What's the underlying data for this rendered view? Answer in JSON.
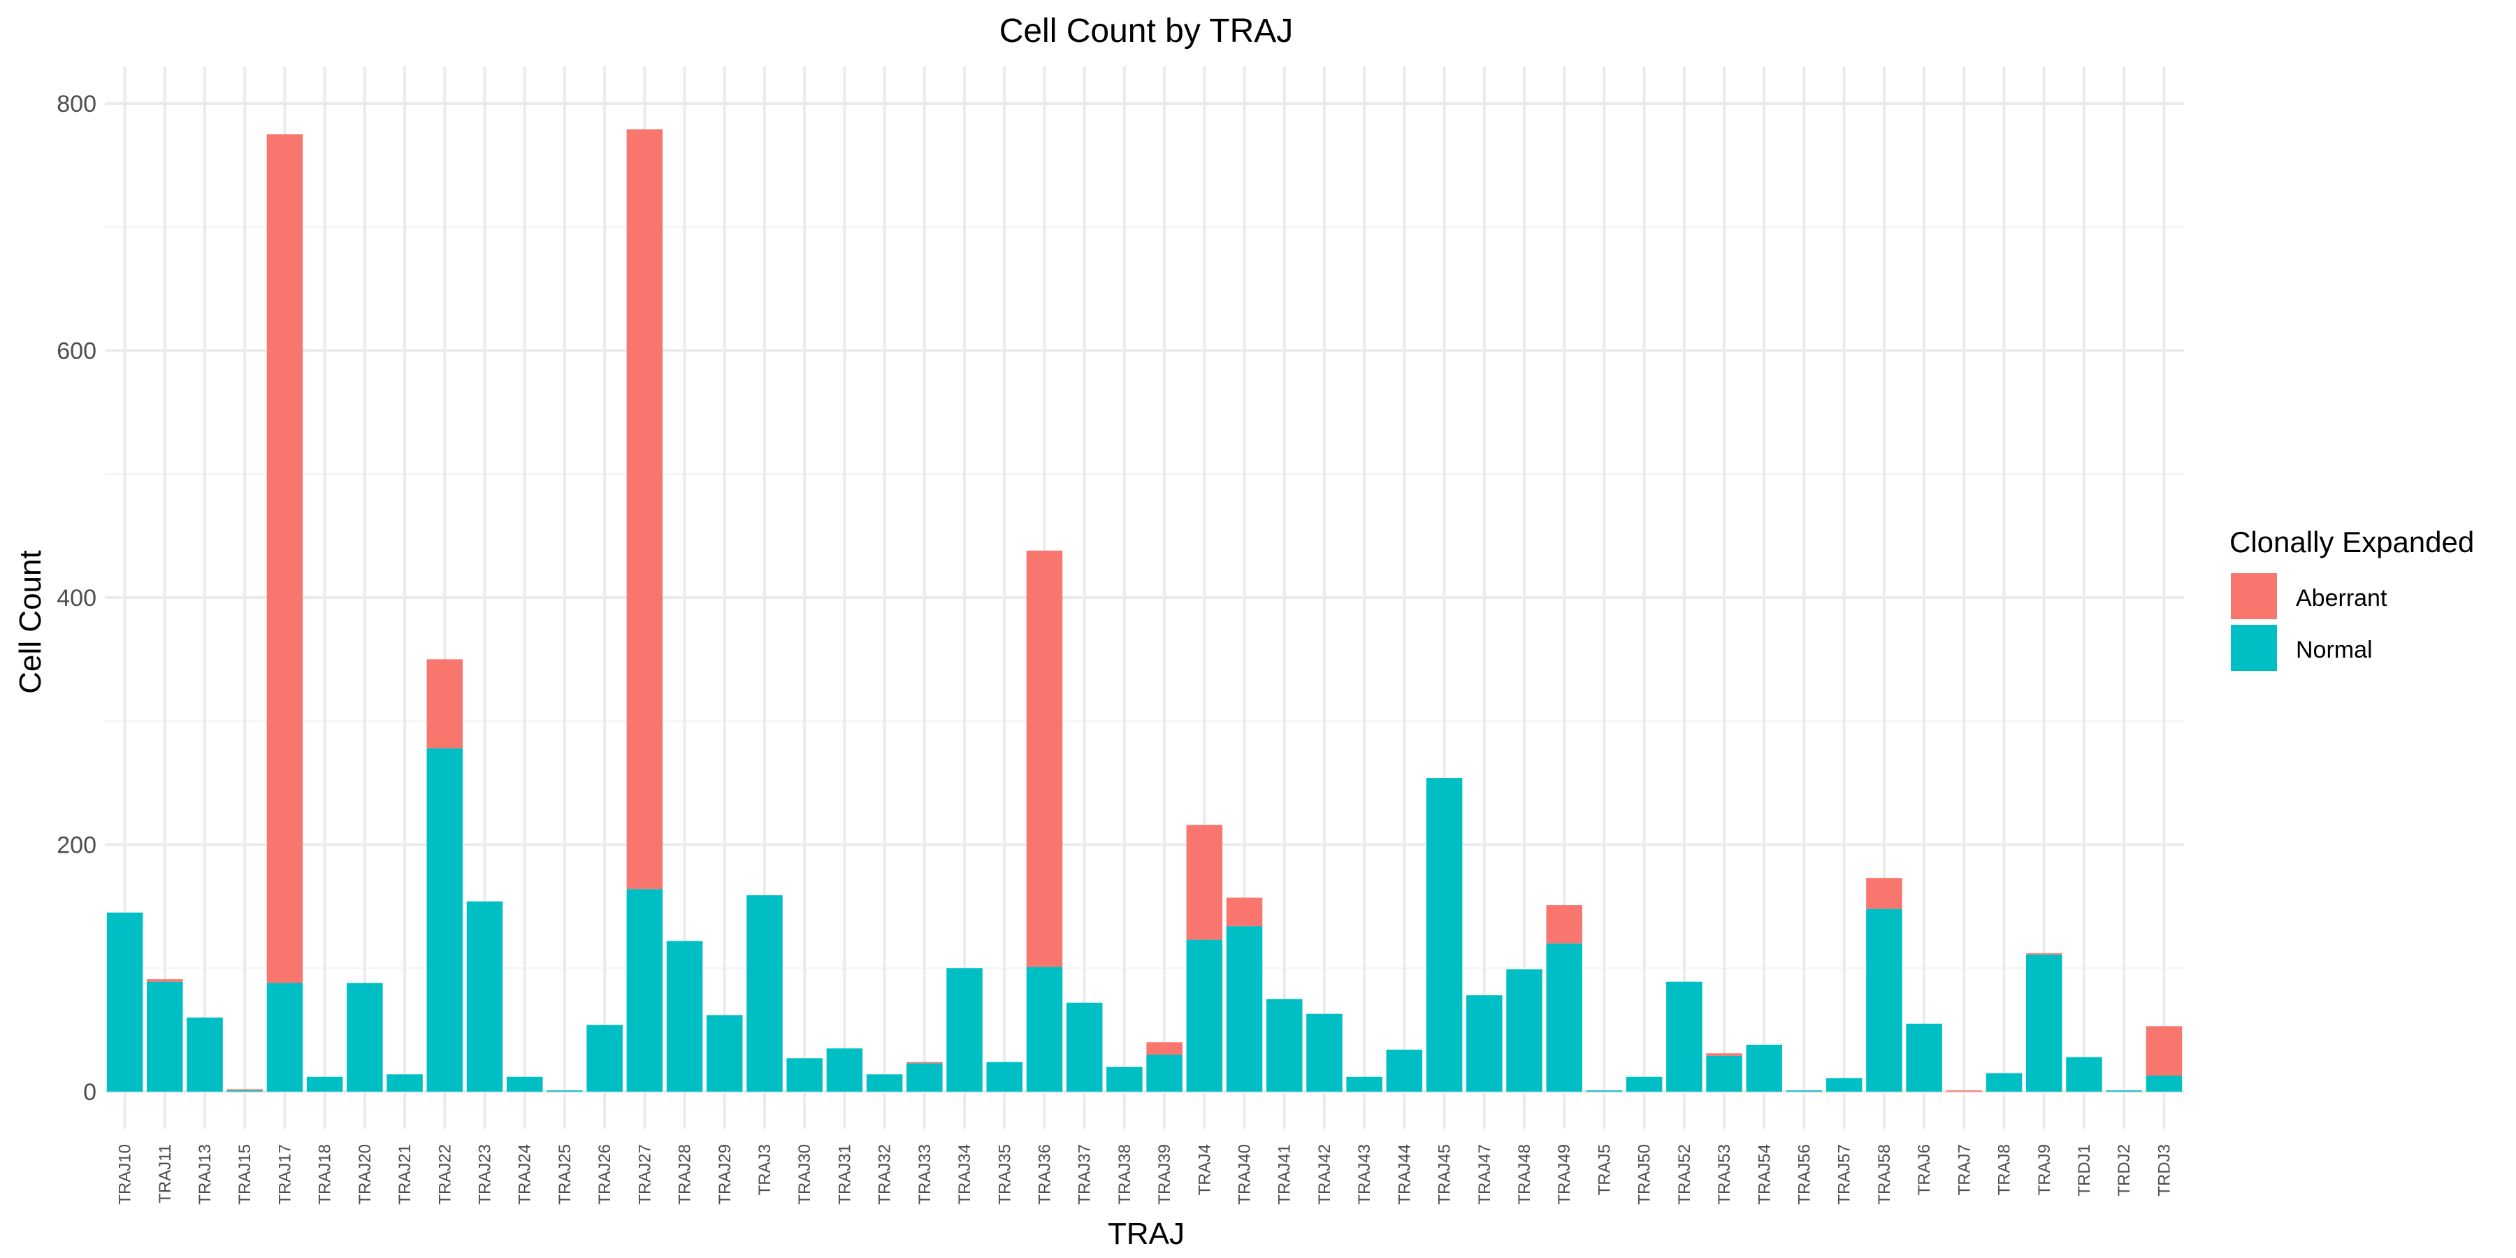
{
  "chart_data": {
    "type": "bar",
    "stacked": true,
    "title": "Cell Count by TRAJ",
    "xlabel": "TRAJ",
    "ylabel": "Cell Count",
    "ylim": [
      -30,
      830
    ],
    "yticks": [
      0,
      200,
      400,
      600,
      800
    ],
    "grid": true,
    "legend": {
      "title": "Clonally Expanded",
      "position": "right"
    },
    "categories": [
      "TRAJ10",
      "TRAJ11",
      "TRAJ13",
      "TRAJ15",
      "TRAJ17",
      "TRAJ18",
      "TRAJ20",
      "TRAJ21",
      "TRAJ22",
      "TRAJ23",
      "TRAJ24",
      "TRAJ25",
      "TRAJ26",
      "TRAJ27",
      "TRAJ28",
      "TRAJ29",
      "TRAJ3",
      "TRAJ30",
      "TRAJ31",
      "TRAJ32",
      "TRAJ33",
      "TRAJ34",
      "TRAJ35",
      "TRAJ36",
      "TRAJ37",
      "TRAJ38",
      "TRAJ39",
      "TRAJ4",
      "TRAJ40",
      "TRAJ41",
      "TRAJ42",
      "TRAJ43",
      "TRAJ44",
      "TRAJ45",
      "TRAJ47",
      "TRAJ48",
      "TRAJ49",
      "TRAJ5",
      "TRAJ50",
      "TRAJ52",
      "TRAJ53",
      "TRAJ54",
      "TRAJ56",
      "TRAJ57",
      "TRAJ58",
      "TRAJ6",
      "TRAJ7",
      "TRAJ8",
      "TRAJ9",
      "TRDJ1",
      "TRDJ2",
      "TRDJ3"
    ],
    "series": [
      {
        "name": "Normal",
        "color": "#00BFC4",
        "values": [
          145,
          89,
          60,
          1,
          88,
          12,
          88,
          14,
          278,
          154,
          12,
          1,
          54,
          164,
          122,
          62,
          159,
          27,
          35,
          14,
          23,
          100,
          24,
          101,
          72,
          20,
          30,
          123,
          134,
          75,
          63,
          12,
          34,
          254,
          78,
          99,
          120,
          1,
          12,
          89,
          29,
          38,
          1,
          11,
          148,
          55,
          0,
          15,
          111,
          28,
          1,
          13
        ]
      },
      {
        "name": "Aberrant",
        "color": "#F8766D",
        "values": [
          0,
          2,
          0,
          1,
          687,
          0,
          0,
          0,
          72,
          0,
          0,
          0,
          0,
          615,
          0,
          0,
          0,
          0,
          0,
          0,
          1,
          0,
          0,
          337,
          0,
          0,
          10,
          93,
          23,
          0,
          0,
          0,
          0,
          0,
          0,
          0,
          31,
          0,
          0,
          0,
          2,
          0,
          0,
          0,
          25,
          0,
          1,
          0,
          1,
          0,
          0,
          40
        ]
      }
    ]
  }
}
